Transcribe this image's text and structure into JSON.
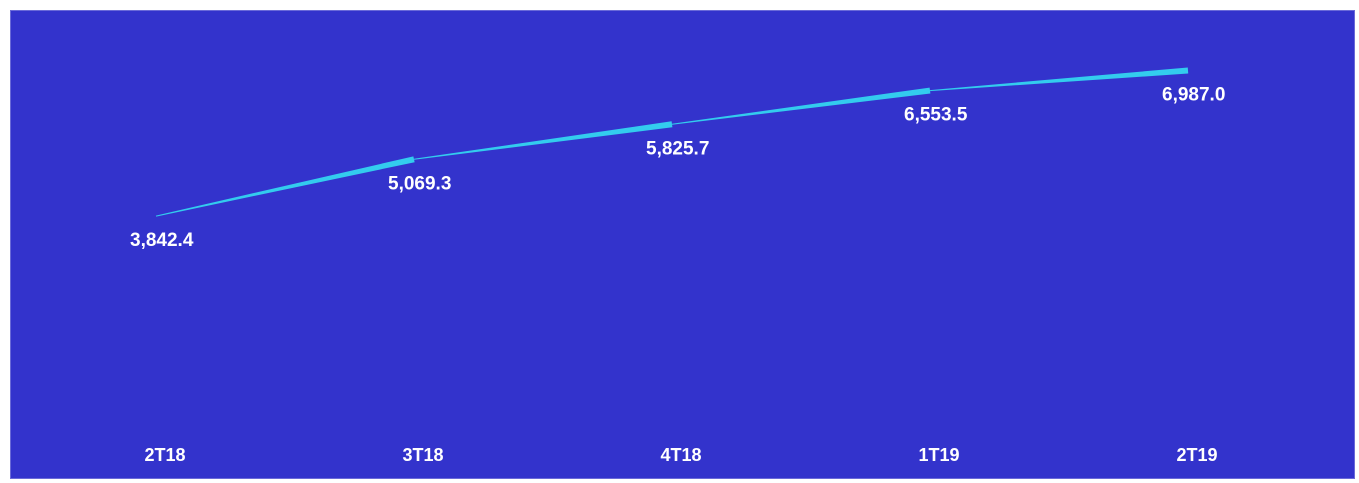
{
  "chart_data": {
    "type": "line",
    "categories": [
      "2T18",
      "3T18",
      "4T18",
      "1T19",
      "2T19"
    ],
    "series": [
      {
        "values": [
          3842.4,
          5069.3,
          5825.7,
          6553.5,
          6987.0
        ]
      }
    ],
    "data_labels": [
      "3,842.4",
      "5,069.3",
      "5,825.7",
      "6,553.5",
      "6,987.0"
    ],
    "title": "",
    "xlabel": "",
    "ylabel": "",
    "grid": false,
    "legend": "none",
    "colors": {
      "background": "#3333cc",
      "line": "#33ccee",
      "text": "#ffffff"
    }
  }
}
